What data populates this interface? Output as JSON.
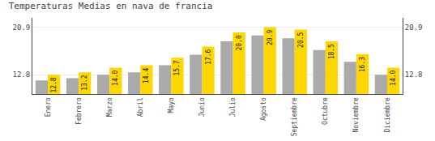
{
  "chart_data": {
    "type": "bar",
    "title": "Temperaturas Medias en nava de francia",
    "categories": [
      "Enero",
      "Febrero",
      "Marzo",
      "Abril",
      "Mayo",
      "Junio",
      "Julio",
      "Agosto",
      "Septiembre",
      "Octubre",
      "Noviembre",
      "Diciembre"
    ],
    "series": [
      {
        "color": "#AAAAAA",
        "values": [
          11.8,
          12.2,
          12.8,
          13.2,
          14.4,
          16.2,
          18.5,
          19.5,
          19.0,
          17.0,
          15.0,
          12.8
        ]
      },
      {
        "color": "#FFD700",
        "values": [
          12.8,
          13.2,
          14.0,
          14.4,
          15.7,
          17.6,
          20.0,
          20.9,
          20.5,
          18.5,
          16.3,
          14.0
        ],
        "value_labels": [
          "12.8",
          "13.2",
          "14.0",
          "14.4",
          "15.7",
          "17.6",
          "20.0",
          "20.9",
          "20.5",
          "18.5",
          "16.3",
          "14.0"
        ],
        "data_labels": true
      }
    ],
    "ylim": [
      9.5,
      22.5
    ],
    "yticks": [
      12.8,
      20.9
    ],
    "y2lim": [
      9.5,
      22.5
    ],
    "y2ticks": [
      12.8,
      20.9
    ],
    "grid": true
  }
}
